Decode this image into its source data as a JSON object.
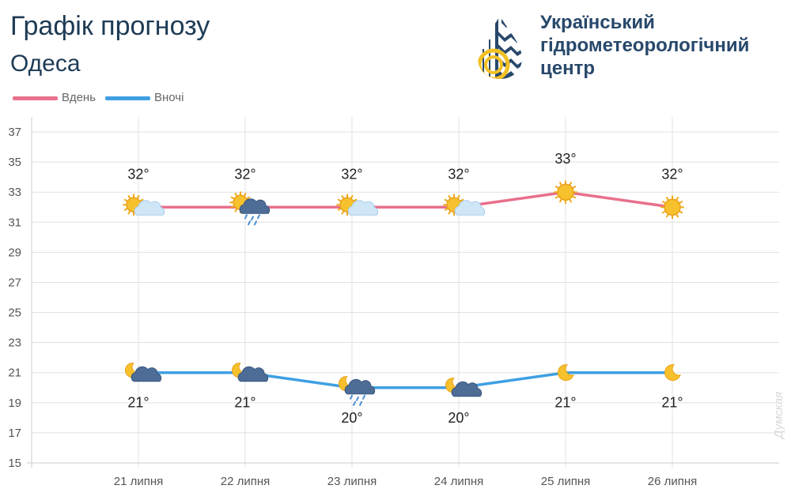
{
  "header": {
    "title": "Графік прогнозу",
    "city": "Одеса"
  },
  "organization": {
    "name": "Український гідрометеорологічний центр",
    "logo_icon": "drop-logo-icon",
    "colors": {
      "primary": "#27486b",
      "accent": "#f2c024"
    }
  },
  "legend": {
    "day_label": "Вдень",
    "night_label": "Вночі"
  },
  "watermark": "Думская",
  "colors": {
    "day_line": "#e8708c",
    "night_line": "#3f9fe2",
    "grid": "#e1e1e1",
    "axis_text": "#555555",
    "label_text": "#222222"
  },
  "chart_data": {
    "type": "line",
    "categories": [
      "21 липня",
      "22 липня",
      "23 липня",
      "24 липня",
      "25 липня",
      "26 липня"
    ],
    "series": [
      {
        "name": "Вдень",
        "values": [
          32,
          32,
          32,
          32,
          33,
          32
        ],
        "labels": [
          "32°",
          "32°",
          "32°",
          "32°",
          "33°",
          "32°"
        ],
        "icons": [
          "sun-cloud-icon",
          "sun-rain-icon",
          "sun-cloud-icon",
          "sun-cloud-icon",
          "sun-icon",
          "sun-icon"
        ]
      },
      {
        "name": "Вночі",
        "values": [
          21,
          21,
          20,
          20,
          21,
          21
        ],
        "labels": [
          "21°",
          "21°",
          "20°",
          "20°",
          "21°",
          "21°"
        ],
        "icons": [
          "moon-cloud-icon",
          "moon-cloud-icon",
          "moon-rain-icon",
          "moon-cloud-icon",
          "moon-icon",
          "moon-icon"
        ]
      }
    ],
    "yticks": [
      15,
      17,
      19,
      21,
      23,
      25,
      27,
      29,
      31,
      33,
      35,
      37
    ],
    "ylim": [
      15,
      38
    ],
    "grid": true,
    "legend_position": "top-left"
  }
}
